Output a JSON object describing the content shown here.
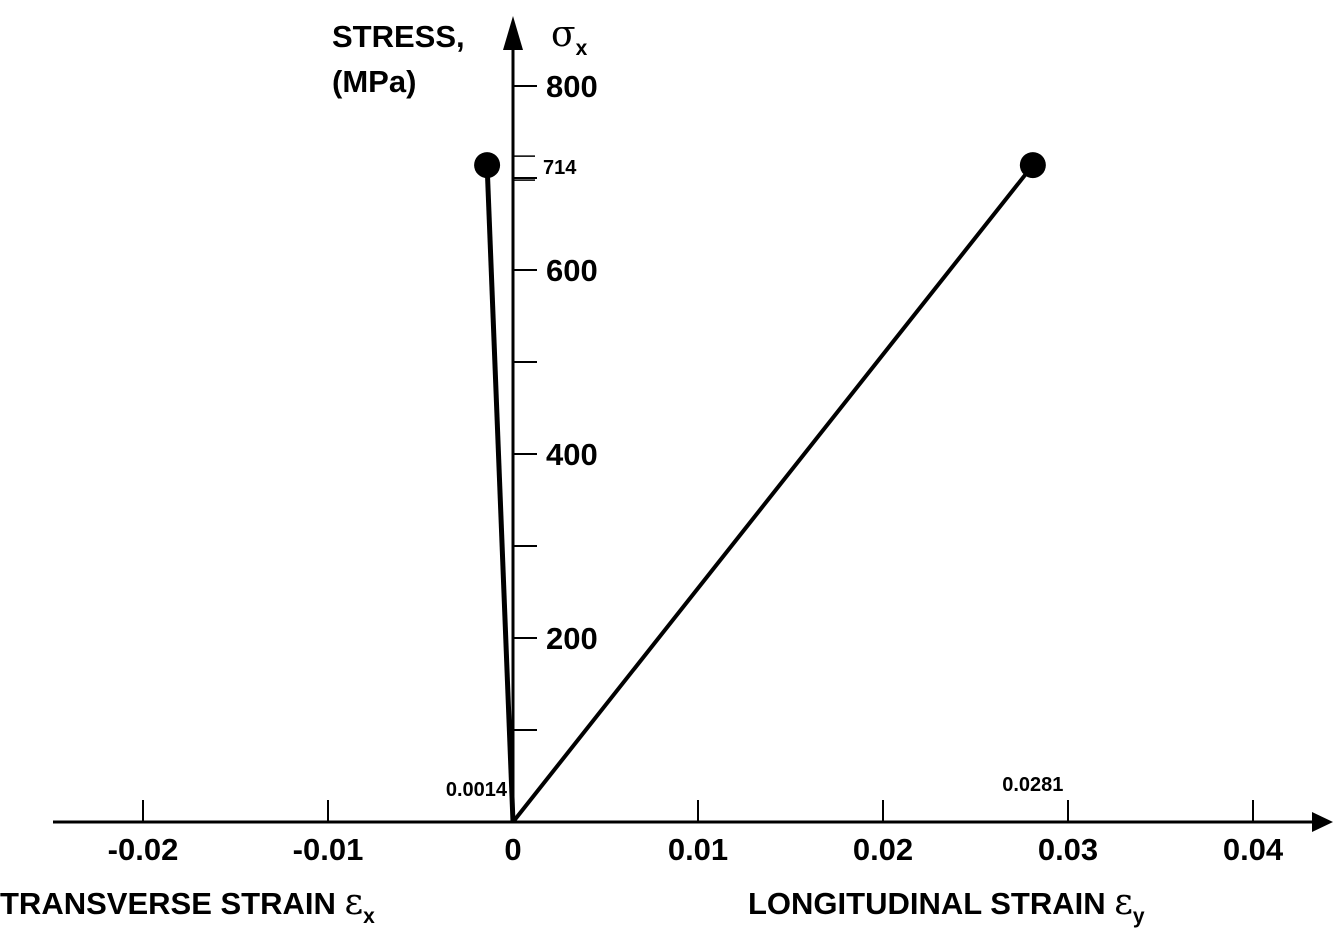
{
  "chart_data": {
    "type": "line",
    "ylabel_line1": "STRESS,",
    "ylabel_line2": "(MPa)",
    "ylabel_symbol": "σ",
    "ylabel_symbol_sub": "x",
    "xlabel_left": "TRANSVERSE STRAIN ",
    "xlabel_left_symbol": "ε",
    "xlabel_left_sub": "x",
    "xlabel_right": "LONGITUDINAL STRAIN ",
    "xlabel_right_symbol": "ε",
    "xlabel_right_sub": "y",
    "xlim": [
      -0.025,
      0.044
    ],
    "ylim": [
      0,
      800
    ],
    "x_ticks": [
      -0.02,
      -0.01,
      0,
      0.01,
      0.02,
      0.03,
      0.04
    ],
    "x_tick_labels": [
      "-0.02",
      "-0.01",
      "0",
      "0.01",
      "0.02",
      "0.03",
      "0.04"
    ],
    "y_major_ticks": [
      200,
      400,
      600,
      800
    ],
    "y_major_labels": [
      "200",
      "400",
      "600",
      "800"
    ],
    "y_minor_ticks": [
      100,
      300,
      500,
      700
    ],
    "series": [
      {
        "points": [
          [
            0,
            0
          ],
          [
            -0.0014,
            714
          ]
        ],
        "endpoint_marker": true
      },
      {
        "points": [
          [
            0,
            0
          ],
          [
            0.0281,
            714
          ]
        ],
        "endpoint_marker": true
      }
    ],
    "annotations": [
      {
        "text": "714",
        "x": 0,
        "y": 714,
        "kind": "y"
      },
      {
        "text": "0.0014",
        "x": -0.0014,
        "y": 0,
        "kind": "x"
      },
      {
        "text": "0.0281",
        "x": 0.0281,
        "y": 0,
        "kind": "x"
      }
    ],
    "grid": false,
    "legend": "none"
  }
}
